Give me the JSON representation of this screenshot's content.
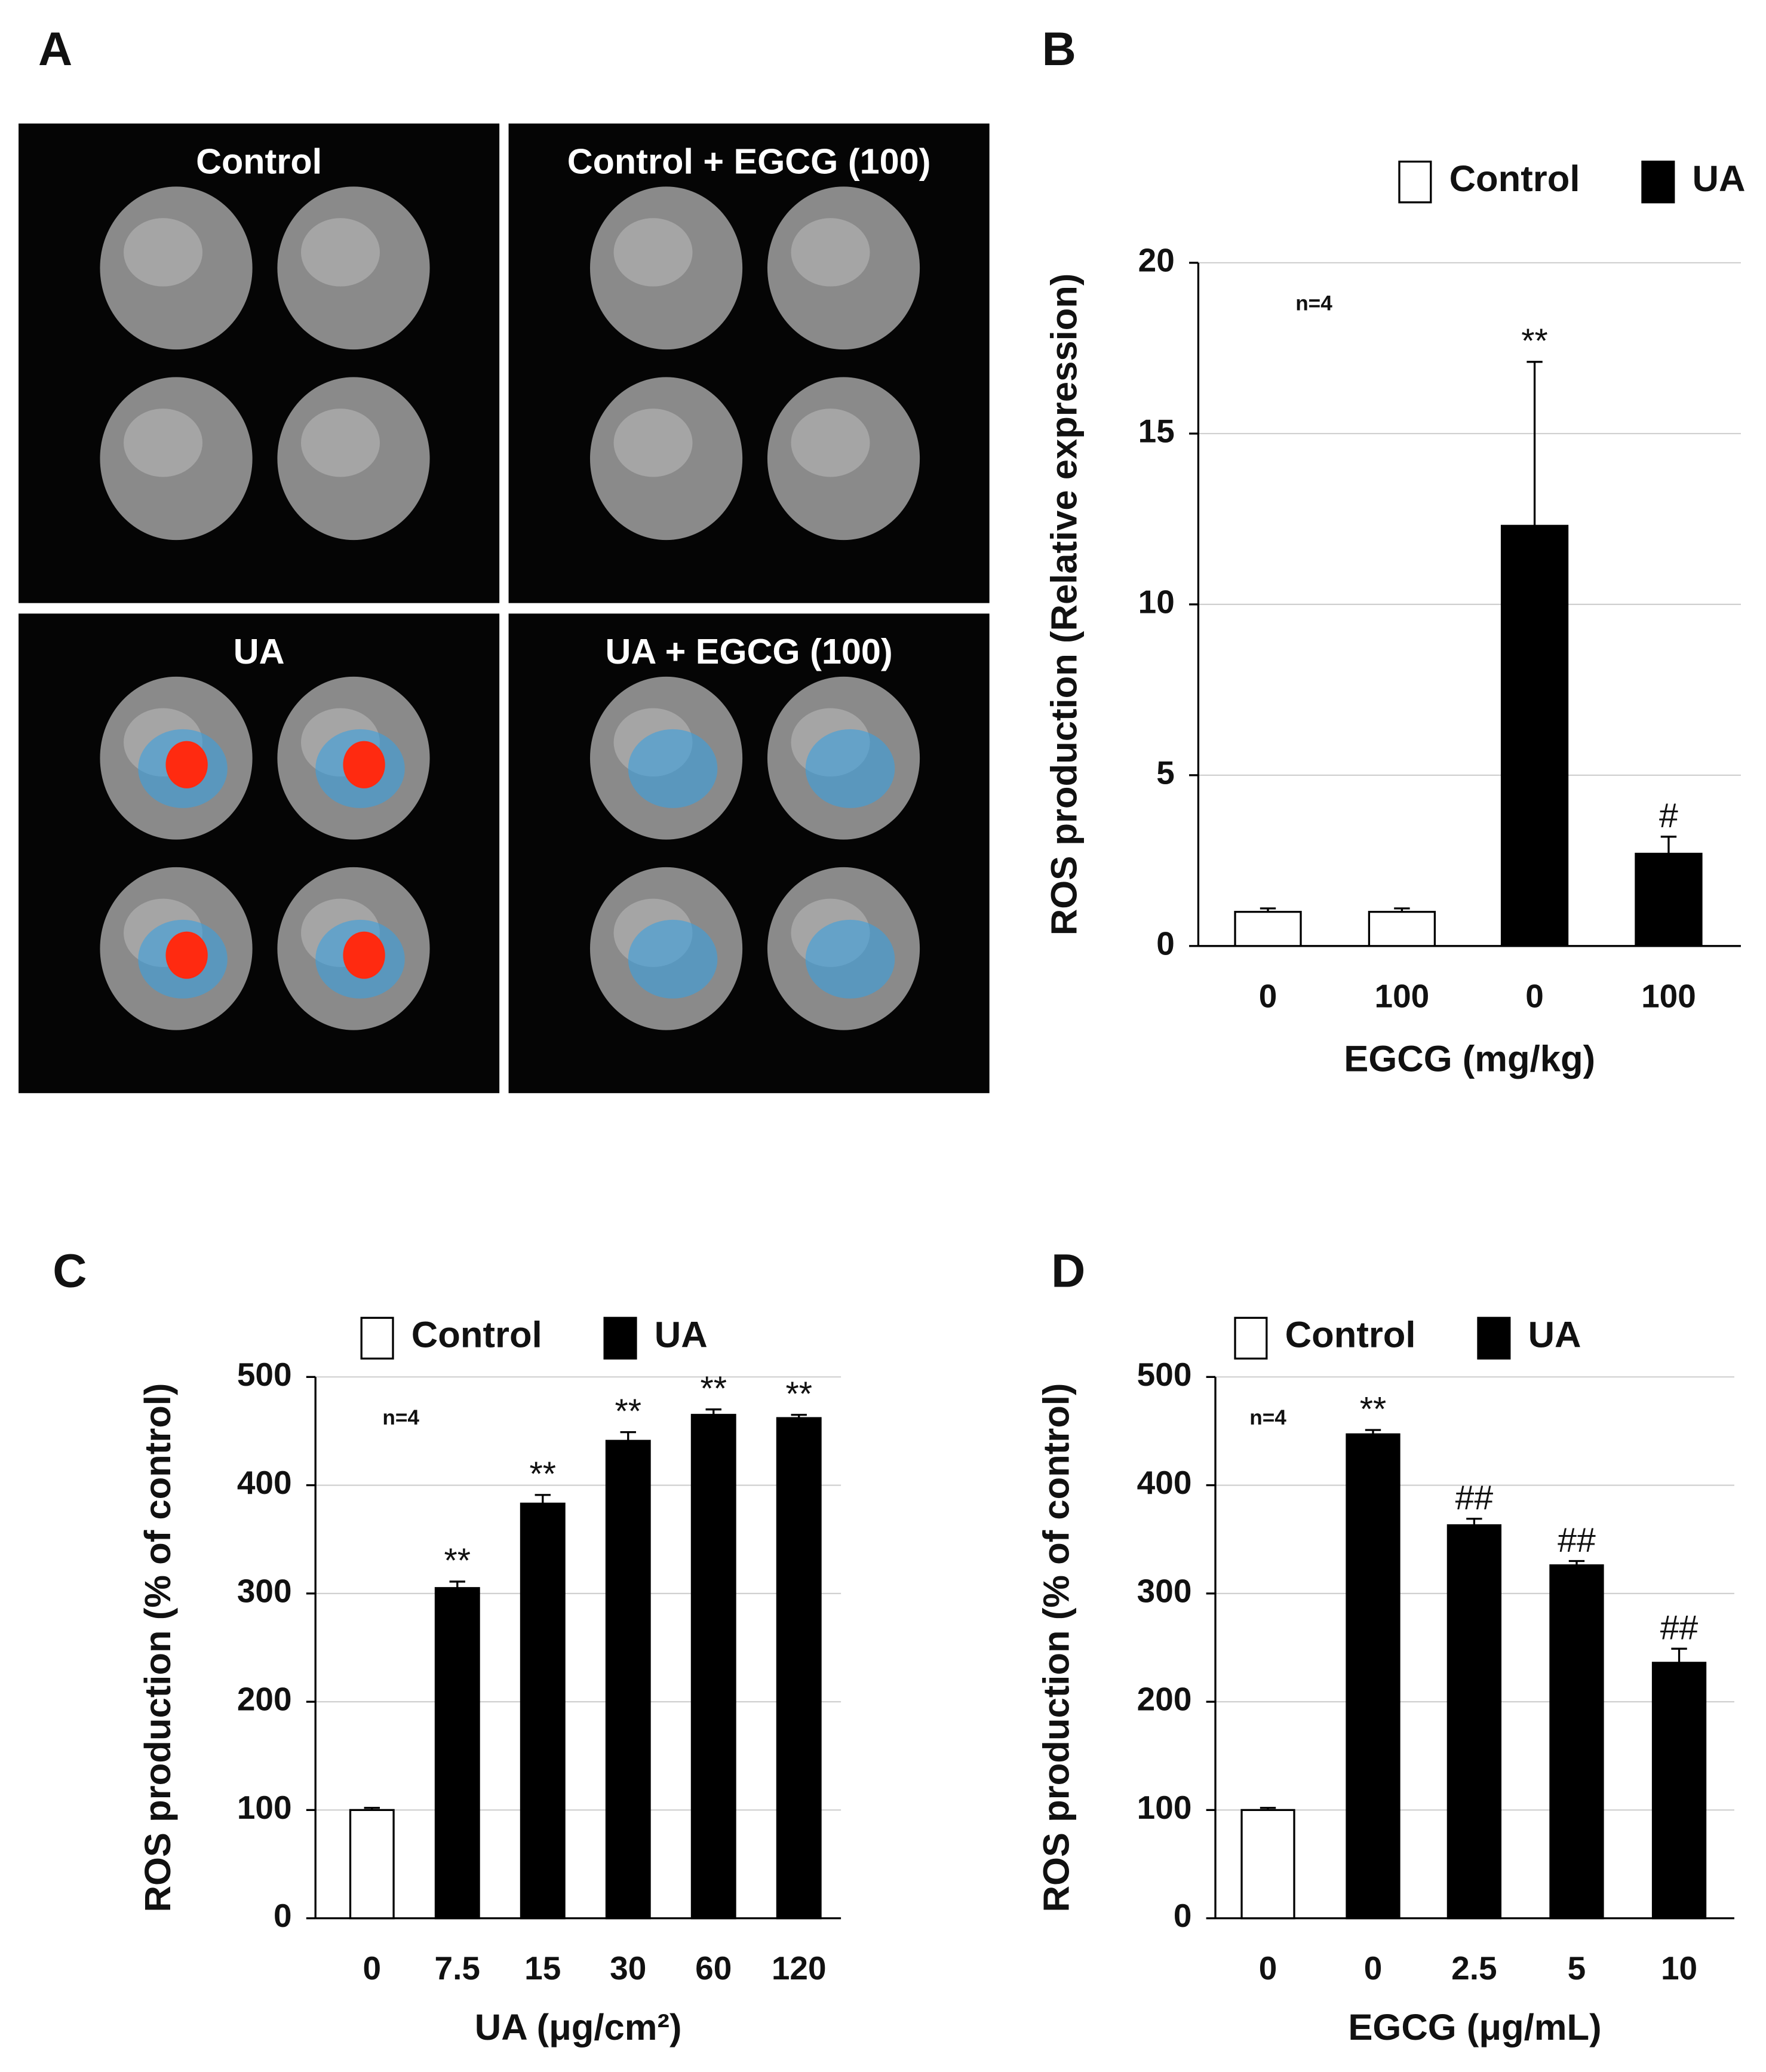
{
  "image_panel": {
    "label": "A",
    "images": [
      {
        "title": "Control"
      },
      {
        "title": "Control + EGCG (100)"
      },
      {
        "title": "UA"
      },
      {
        "title": "UA + EGCG (100)"
      }
    ]
  },
  "chart_data": [
    {
      "type": "bar",
      "label": "B",
      "note": "n=4",
      "y_label": "ROS production (Relative expression)",
      "x_label": "EGCG (mg/kg)",
      "categories": [
        "0",
        "100",
        "0",
        "100"
      ],
      "series": [
        {
          "name": "Control",
          "color": "#ffffff",
          "values": [
            1.0,
            1.0,
            null,
            null
          ],
          "errors": [
            0.1,
            0.1,
            null,
            null
          ]
        },
        {
          "name": "UA",
          "color": "#000000",
          "values": [
            null,
            null,
            12.3,
            2.7
          ],
          "errors": [
            null,
            null,
            4.8,
            0.5
          ]
        }
      ],
      "annotations": [
        null,
        null,
        "**",
        "#"
      ],
      "ylim": [
        0,
        20
      ],
      "yticks": [
        0,
        5,
        10,
        15,
        20
      ],
      "grid": true
    },
    {
      "type": "bar",
      "label": "C",
      "note": "n=4",
      "y_label": "ROS production (% of control)",
      "x_label": "UA (μg/cm²)",
      "categories": [
        "0",
        "7.5",
        "15",
        "30",
        "60",
        "120"
      ],
      "series": [
        {
          "name": "Control",
          "color": "#ffffff",
          "values": [
            100,
            null,
            null,
            null,
            null,
            null
          ],
          "errors": [
            2,
            null,
            null,
            null,
            null,
            null
          ]
        },
        {
          "name": "UA",
          "color": "#000000",
          "values": [
            null,
            305,
            383,
            441,
            465,
            462
          ],
          "errors": [
            null,
            6,
            8,
            8,
            5,
            3
          ]
        }
      ],
      "annotations": [
        null,
        "**",
        "**",
        "**",
        "**",
        "**"
      ],
      "ylim": [
        0,
        500
      ],
      "yticks": [
        0,
        100,
        200,
        300,
        400,
        500
      ],
      "grid": true
    },
    {
      "type": "bar",
      "label": "D",
      "note": "n=4",
      "y_label": "ROS production (% of control)",
      "x_label": "EGCG (μg/mL)",
      "categories": [
        "0",
        "0",
        "2.5",
        "5",
        "10"
      ],
      "series": [
        {
          "name": "Control",
          "color": "#ffffff",
          "values": [
            100,
            null,
            null,
            null,
            null
          ],
          "errors": [
            2,
            null,
            null,
            null,
            null
          ]
        },
        {
          "name": "UA",
          "color": "#000000",
          "values": [
            null,
            447,
            363,
            326,
            236
          ],
          "errors": [
            null,
            4,
            6,
            4,
            13
          ]
        }
      ],
      "annotations": [
        null,
        "**",
        "##",
        "##",
        "##"
      ],
      "ylim": [
        0,
        500
      ],
      "yticks": [
        0,
        100,
        200,
        300,
        400,
        500
      ],
      "grid": true
    }
  ]
}
